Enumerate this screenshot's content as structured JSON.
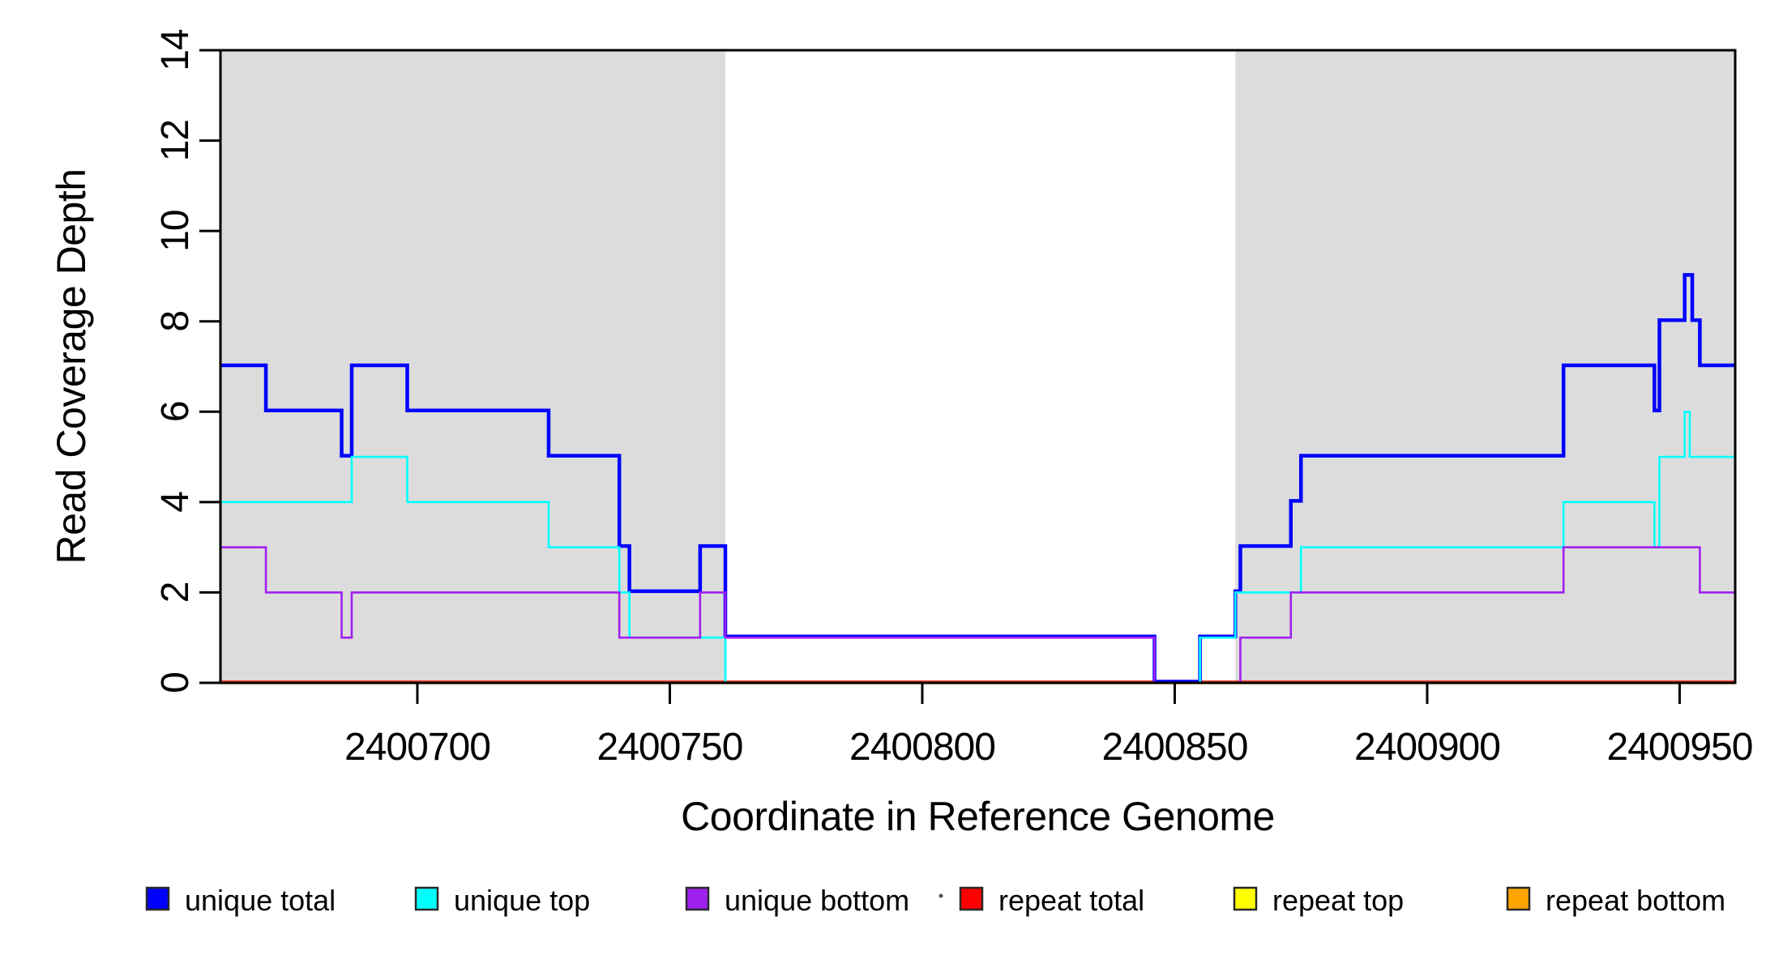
{
  "figure": {
    "background": "#ffffff",
    "plot_bg": "#ffffff",
    "box_color": "#000000",
    "shaded_region_color": "#DCDCDC"
  },
  "chart_data": {
    "type": "line",
    "subtype": "step-after-coverage",
    "title": "",
    "xlabel": "Coordinate in Reference Genome",
    "ylabel": "Read Coverage Depth",
    "xlim": [
      2400661,
      2400961
    ],
    "ylim": [
      0,
      14
    ],
    "x_ticks": [
      2400700,
      2400750,
      2400800,
      2400850,
      2400900,
      2400950
    ],
    "y_ticks": [
      0,
      2,
      4,
      6,
      8,
      10,
      12,
      14
    ],
    "grid": "off",
    "legend_position": "bottom",
    "shaded_regions": [
      {
        "x1": 2400661,
        "x2": 2400761,
        "color": "#DCDCDC"
      },
      {
        "x1": 2400862,
        "x2": 2400961,
        "color": "#DCDCDC"
      }
    ],
    "series": [
      {
        "name": "unique total",
        "color": "#0000FF",
        "points": [
          [
            2400661,
            7
          ],
          [
            2400670,
            6
          ],
          [
            2400685,
            5
          ],
          [
            2400687,
            7
          ],
          [
            2400698,
            6
          ],
          [
            2400726,
            5
          ],
          [
            2400740,
            3
          ],
          [
            2400742,
            2
          ],
          [
            2400756,
            3
          ],
          [
            2400761,
            1
          ],
          [
            2400846,
            0
          ],
          [
            2400855,
            1
          ],
          [
            2400862,
            2
          ],
          [
            2400863,
            3
          ],
          [
            2400873,
            4
          ],
          [
            2400875,
            5
          ],
          [
            2400927,
            7
          ],
          [
            2400945,
            6
          ],
          [
            2400946,
            8
          ],
          [
            2400951,
            9
          ],
          [
            2400952.5,
            8
          ],
          [
            2400954,
            7
          ],
          [
            2400961,
            7
          ]
        ]
      },
      {
        "name": "unique top",
        "color": "#00FFFF",
        "points": [
          [
            2400661,
            4
          ],
          [
            2400687,
            5
          ],
          [
            2400698,
            4
          ],
          [
            2400726,
            3
          ],
          [
            2400740,
            2
          ],
          [
            2400742,
            1
          ],
          [
            2400761,
            0
          ],
          [
            2400855,
            1
          ],
          [
            2400862,
            2
          ],
          [
            2400875,
            3
          ],
          [
            2400927,
            4
          ],
          [
            2400945,
            3
          ],
          [
            2400946,
            5
          ],
          [
            2400951,
            6
          ],
          [
            2400952,
            5
          ],
          [
            2400961,
            5
          ]
        ]
      },
      {
        "name": "unique bottom",
        "color": "#A020F0",
        "points": [
          [
            2400661,
            3
          ],
          [
            2400670,
            2
          ],
          [
            2400685,
            1
          ],
          [
            2400687,
            2
          ],
          [
            2400740,
            1
          ],
          [
            2400756,
            2
          ],
          [
            2400761,
            1
          ],
          [
            2400846,
            0
          ],
          [
            2400863,
            1
          ],
          [
            2400873,
            2
          ],
          [
            2400927,
            3
          ],
          [
            2400954,
            2
          ],
          [
            2400961,
            2
          ]
        ]
      },
      {
        "name": "repeat total",
        "color": "#FF0000",
        "points": [
          [
            2400661,
            0
          ],
          [
            2400961,
            0
          ]
        ]
      },
      {
        "name": "repeat top",
        "color": "#FFFF00",
        "points": [
          [
            2400661,
            0
          ],
          [
            2400961,
            0
          ]
        ]
      },
      {
        "name": "repeat bottom",
        "color": "#FFA500",
        "points": [
          [
            2400661,
            0
          ],
          [
            2400961,
            0
          ]
        ]
      }
    ],
    "legend": [
      {
        "label": "unique total",
        "color": "#0000FF"
      },
      {
        "label": "unique top",
        "color": "#00FFFF"
      },
      {
        "label": "unique bottom",
        "color": "#A020F0"
      },
      {
        "label": "repeat total",
        "color": "#FF0000"
      },
      {
        "label": "repeat top",
        "color": "#FFFF00"
      },
      {
        "label": "repeat bottom",
        "color": "#FFA500"
      }
    ]
  }
}
